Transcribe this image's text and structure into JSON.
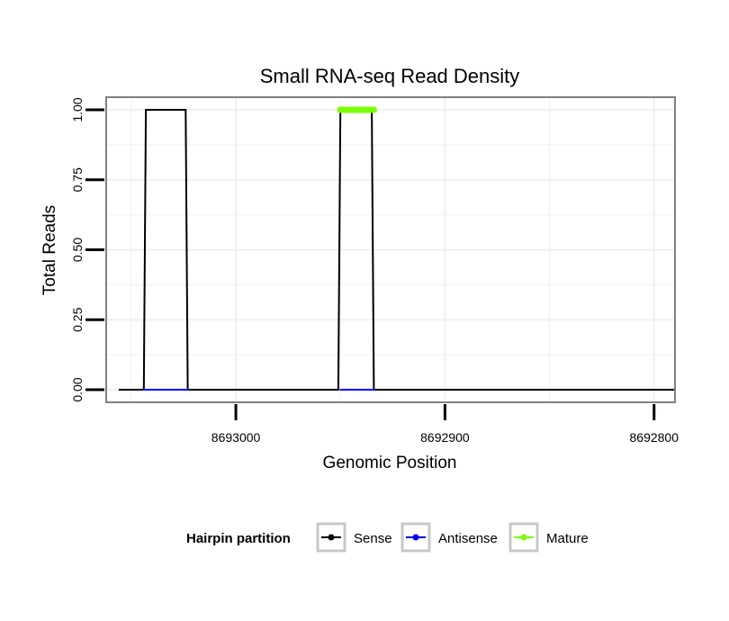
{
  "chart_data": {
    "type": "line",
    "title": "Small RNA-seq Read Density",
    "xlabel": "Genomic Position",
    "ylabel": "Total Reads",
    "x_reversed": true,
    "xlim": [
      8693062,
      8692790
    ],
    "ylim": [
      -0.045,
      1.045
    ],
    "x_ticks": [
      8693000,
      8692900,
      8692800
    ],
    "x_tick_labels": [
      "8693000",
      "8692900",
      "8692800"
    ],
    "y_ticks": [
      0.0,
      0.25,
      0.5,
      0.75,
      1.0
    ],
    "y_tick_labels": [
      "0.00",
      "0.25",
      "0.50",
      "0.75",
      "1.00"
    ],
    "grid": true,
    "series": [
      {
        "name": "Sense",
        "color": "#000000",
        "x": [
          8693056,
          8693044,
          8693043,
          8693024,
          8693023,
          8692951,
          8692950,
          8692935,
          8692934,
          8692790
        ],
        "y": [
          0,
          0,
          1,
          1,
          0,
          0,
          1,
          1,
          0,
          0
        ]
      },
      {
        "name": "Antisense",
        "color": "#0000ff",
        "x": [
          8693044,
          8693023,
          8692950,
          8692934
        ],
        "y": [
          0,
          0,
          0,
          0
        ]
      },
      {
        "name": "Mature",
        "color": "#7cfc00",
        "x": [
          8692950,
          8692934
        ],
        "y": [
          1,
          1
        ]
      }
    ],
    "legend": {
      "title": "Hairpin partition",
      "position": "bottom",
      "entries": [
        "Sense",
        "Antisense",
        "Mature"
      ]
    }
  }
}
